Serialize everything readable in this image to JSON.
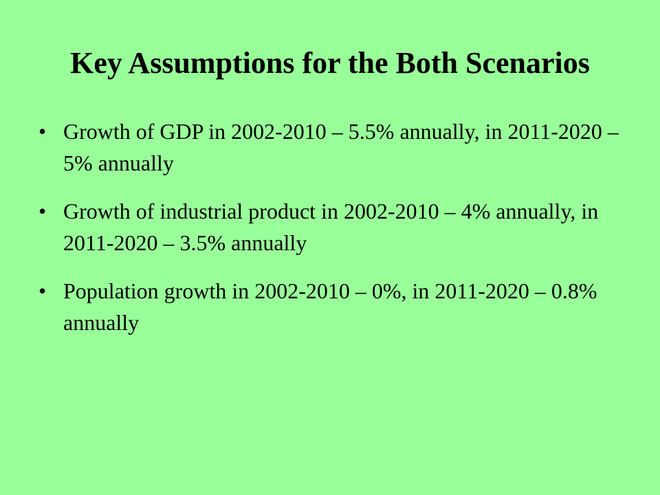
{
  "slide": {
    "title": "Key Assumptions for the Both Scenarios",
    "bullet_glyph": "•",
    "bullets": [
      {
        "text": "Growth of GDP in 2002-2010 – 5.5% annually, in 2011-2020 – 5% annually"
      },
      {
        "text": "Growth of industrial product in 2002-2010 – 4% annually, in 2011-2020 – 3.5% annually"
      },
      {
        "text": "Population growth in 2002-2010 – 0%, in 2011-2020 – 0.8% annually"
      }
    ],
    "background_color": "#99ff99",
    "text_color": "#000000"
  }
}
